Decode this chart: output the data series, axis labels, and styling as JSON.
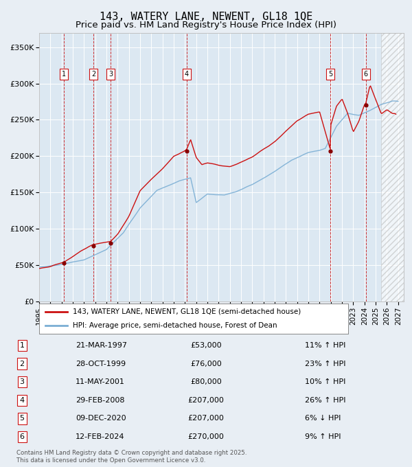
{
  "title": "143, WATERY LANE, NEWENT, GL18 1QE",
  "subtitle": "Price paid vs. HM Land Registry's House Price Index (HPI)",
  "ylim": [
    0,
    370000
  ],
  "xlim_start": 1995.0,
  "xlim_end": 2027.5,
  "yticks": [
    0,
    50000,
    100000,
    150000,
    200000,
    250000,
    300000,
    350000
  ],
  "ytick_labels": [
    "£0",
    "£50K",
    "£100K",
    "£150K",
    "£200K",
    "£250K",
    "£300K",
    "£350K"
  ],
  "xticks": [
    1995,
    1996,
    1997,
    1998,
    1999,
    2000,
    2001,
    2002,
    2003,
    2004,
    2005,
    2006,
    2007,
    2008,
    2009,
    2010,
    2011,
    2012,
    2013,
    2014,
    2015,
    2016,
    2017,
    2018,
    2019,
    2020,
    2021,
    2022,
    2023,
    2024,
    2025,
    2026,
    2027
  ],
  "background_color": "#e8eef4",
  "plot_bg_color": "#dce8f2",
  "hpi_color": "#7aaed4",
  "price_color": "#cc1111",
  "sale_marker_color": "#880000",
  "vline_color": "#cc1111",
  "title_fontsize": 11,
  "subtitle_fontsize": 9.5,
  "tick_fontsize": 8,
  "sales": [
    {
      "num": 1,
      "date": "21-MAR-1997",
      "year": 1997.22,
      "price": 53000,
      "pct": "11% ↑ HPI"
    },
    {
      "num": 2,
      "date": "28-OCT-1999",
      "year": 1999.83,
      "price": 76000,
      "pct": "23% ↑ HPI"
    },
    {
      "num": 3,
      "date": "11-MAY-2001",
      "year": 2001.36,
      "price": 80000,
      "pct": "10% ↑ HPI"
    },
    {
      "num": 4,
      "date": "29-FEB-2008",
      "year": 2008.16,
      "price": 207000,
      "pct": "26% ↑ HPI"
    },
    {
      "num": 5,
      "date": "09-DEC-2020",
      "year": 2020.94,
      "price": 207000,
      "pct": "6% ↓ HPI"
    },
    {
      "num": 6,
      "date": "12-FEB-2024",
      "year": 2024.12,
      "price": 270000,
      "pct": "9% ↑ HPI"
    }
  ],
  "future_start": 2025.5,
  "footer": "Contains HM Land Registry data © Crown copyright and database right 2025.\nThis data is licensed under the Open Government Licence v3.0.",
  "legend1": "143, WATERY LANE, NEWENT, GL18 1QE (semi-detached house)",
  "legend2": "HPI: Average price, semi-detached house, Forest of Dean"
}
